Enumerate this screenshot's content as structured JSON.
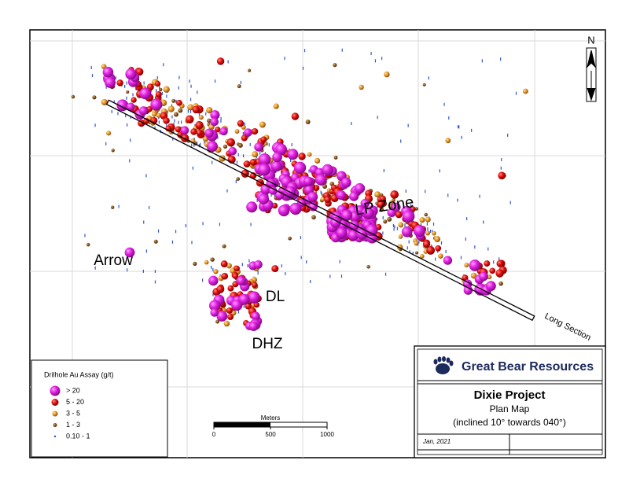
{
  "map": {
    "north": "N",
    "labels": {
      "lp_zone": "LP Zone",
      "arrow": "Arrow",
      "dl": "DL",
      "dhz": "DHZ",
      "long_section": "Long Section"
    }
  },
  "legend": {
    "title": "Drilhole Au Assay (g/t)",
    "items": [
      "> 20",
      "5 - 20",
      "3 - 5",
      "1 - 3",
      "0.10 - 1"
    ]
  },
  "scale_bar": {
    "label": "Meters",
    "ticks": [
      0,
      500,
      1000
    ]
  },
  "title_block": {
    "company": "Great Bear Resources",
    "project": "Dixie Project",
    "subtitle": "Plan Map",
    "note": "(inclined 10° towards 040°)",
    "date": "Jan, 2021"
  }
}
